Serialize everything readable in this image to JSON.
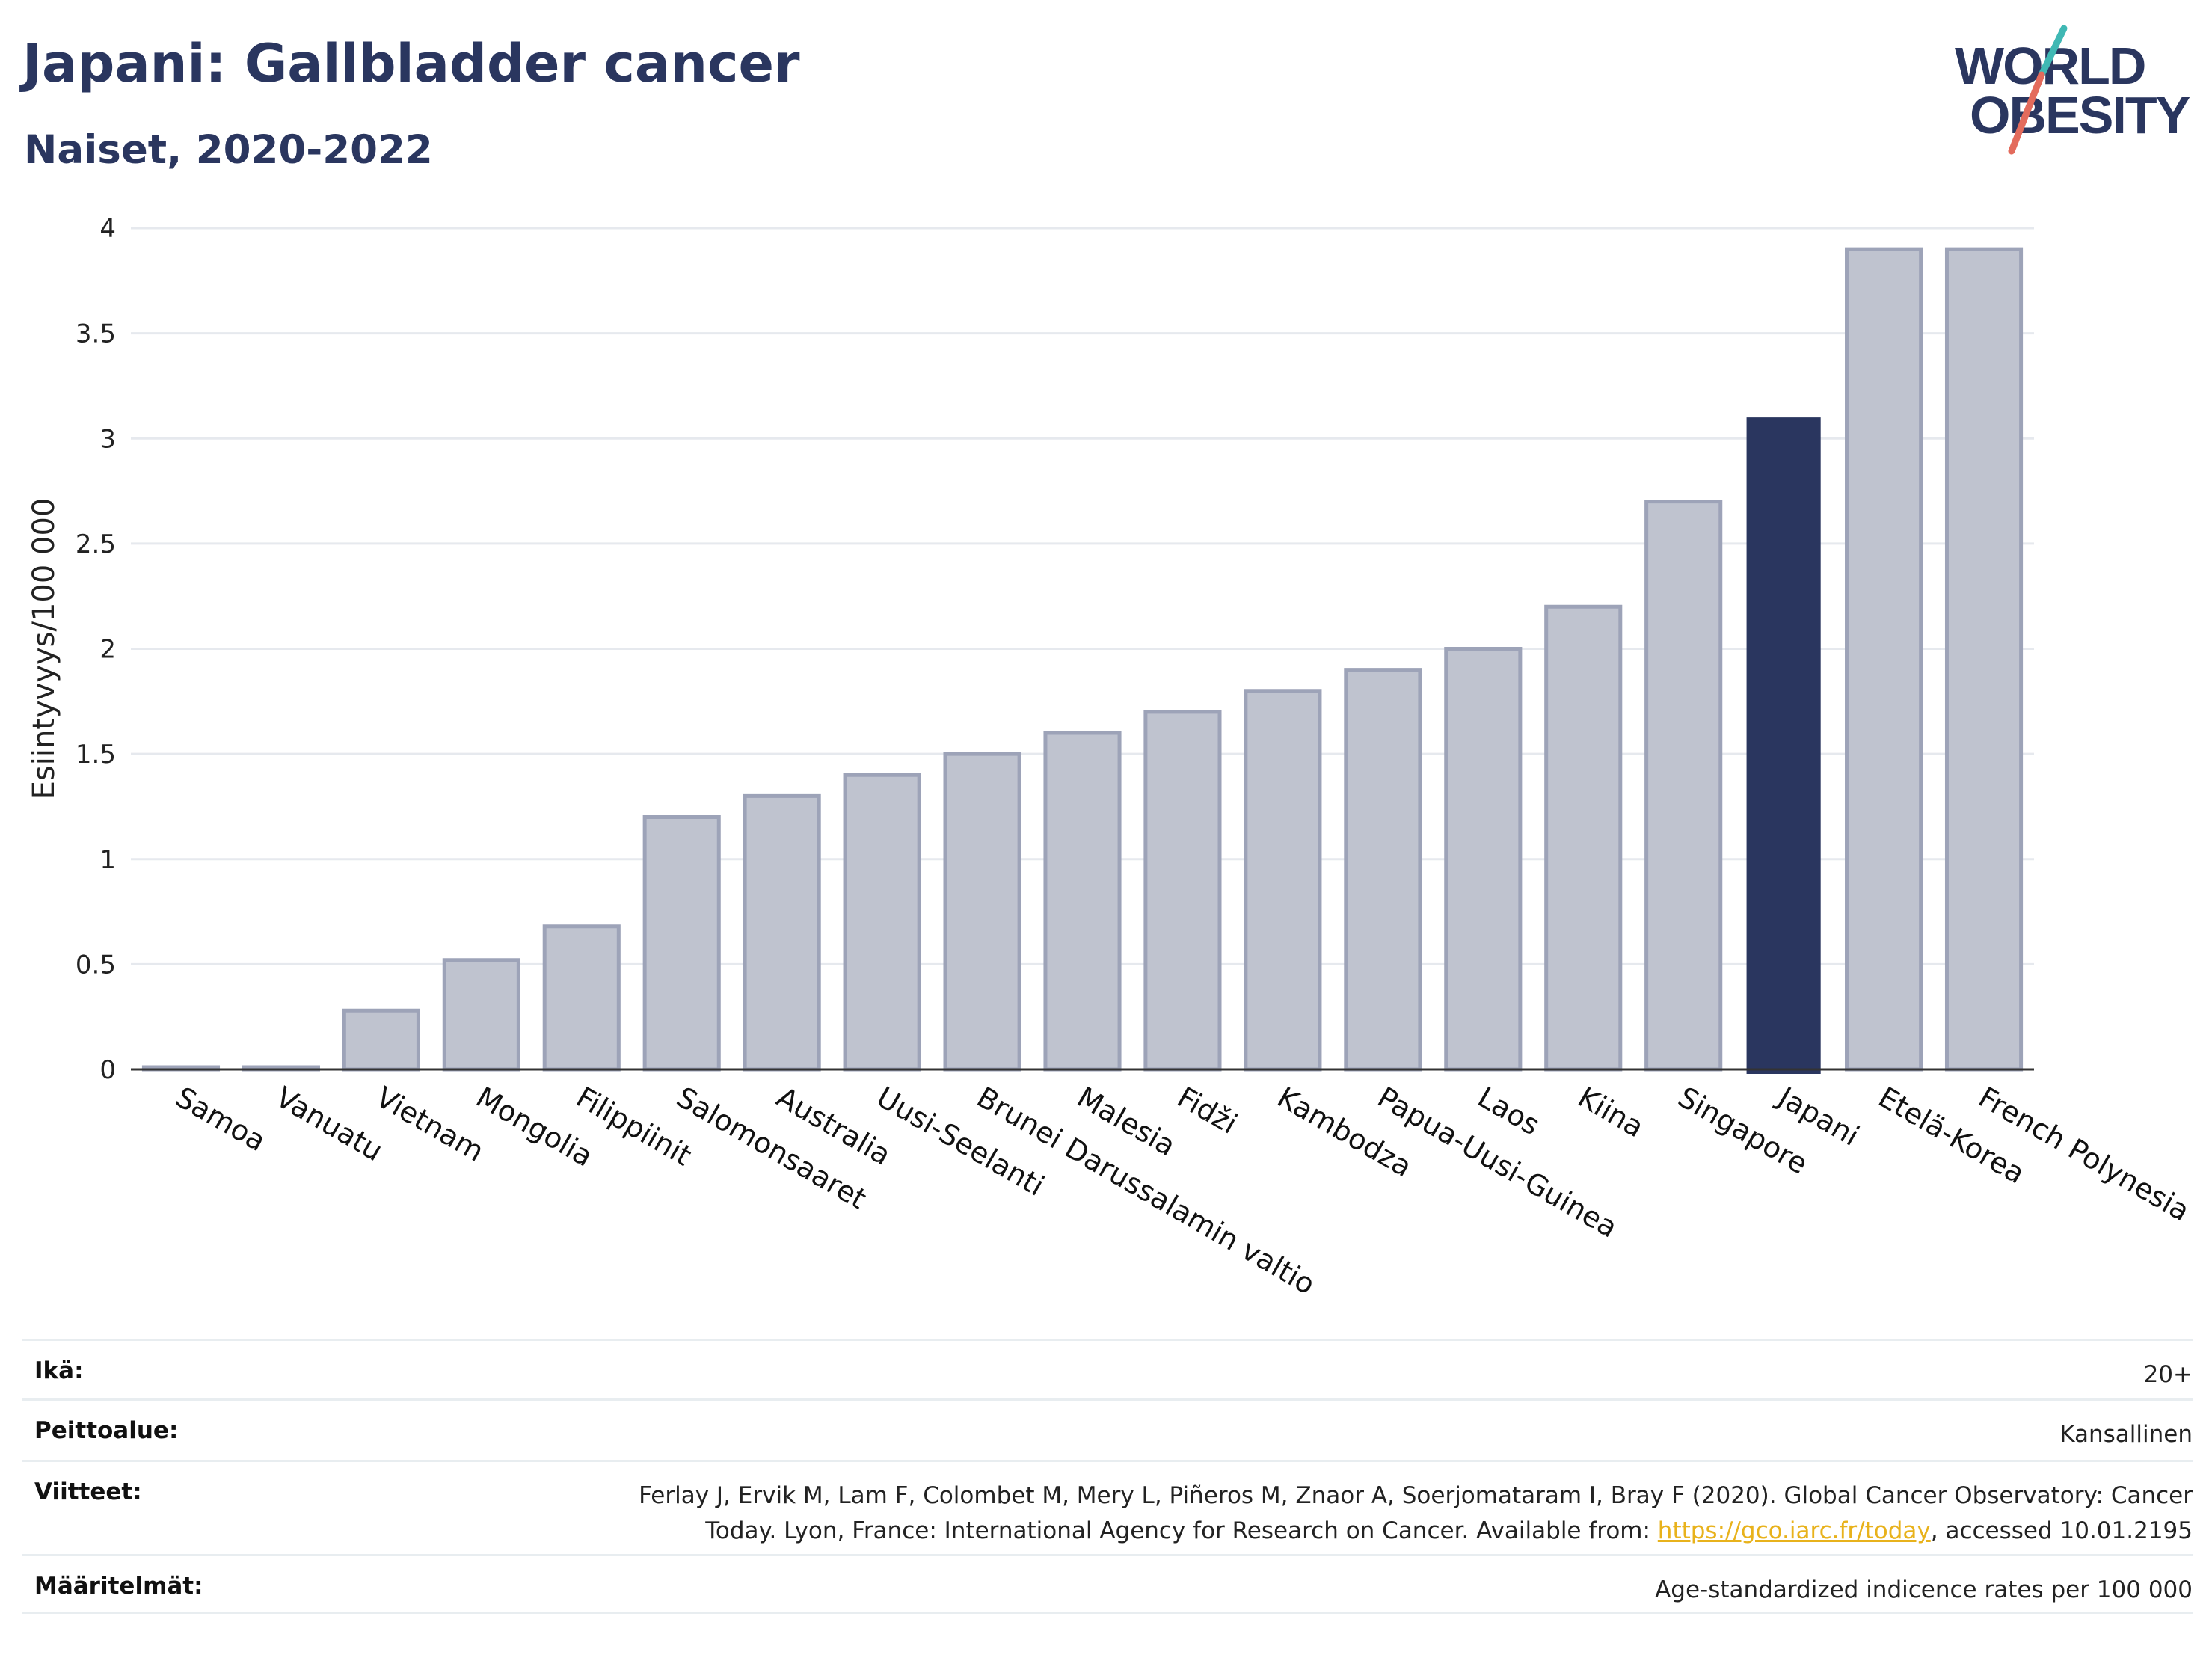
{
  "header": {
    "title": "Japani: Gallbladder cancer",
    "subtitle": "Naiset, 2020-2022"
  },
  "logo": {
    "line1": "WORLD",
    "line2": "OBESITY",
    "text_color": "#2a365f",
    "slash_colors": [
      "#3fb8b4",
      "#e36b5c"
    ]
  },
  "chart_data": {
    "type": "bar",
    "title": "Japani: Gallbladder cancer",
    "subtitle": "Naiset, 2020-2022",
    "xlabel": "",
    "ylabel": "Esiintyvyys/100 000",
    "ylim": [
      0,
      4
    ],
    "yticks": [
      0,
      0.5,
      1,
      1.5,
      2,
      2.5,
      3,
      3.5,
      4
    ],
    "ytick_labels": [
      "0",
      "0.5",
      "1",
      "1.5",
      "2",
      "2.5",
      "3",
      "3.5",
      "4"
    ],
    "grid": true,
    "highlight": "Japani",
    "colors": {
      "default": "#bfc3cf",
      "default_edge": "#9da3b8",
      "highlight": "#2a365f"
    },
    "categories": [
      "Samoa",
      "Vanuatu",
      "Vietnam",
      "Mongolia",
      "Filippiinit",
      "Salomonsaaret",
      "Australia",
      "Uusi-Seelanti",
      "Brunei Darussalamin valtio",
      "Malesia",
      "Fidži",
      "Kambodza",
      "Papua-Uusi-Guinea",
      "Laos",
      "Kiina",
      "Singapore",
      "Japani",
      "Etelä-Korea",
      "French Polynesia"
    ],
    "values": [
      0.01,
      0.01,
      0.28,
      0.52,
      0.68,
      1.2,
      1.3,
      1.4,
      1.5,
      1.6,
      1.7,
      1.8,
      1.9,
      2.0,
      2.2,
      2.7,
      3.1,
      3.9,
      3.9
    ]
  },
  "meta": {
    "age_label": "Ikä:",
    "age_value": "20+",
    "coverage_label": "Peittoalue:",
    "coverage_value": "Kansallinen",
    "refs_label": "Viitteet:",
    "refs_line1": "Ferlay J, Ervik M, Lam F, Colombet M, Mery L, Piñeros M, Znaor A, Soerjomataram I, Bray F (2020). Global Cancer Observatory: Cancer",
    "refs_line2_pre": "Today. Lyon, France: International Agency for Research on Cancer. Available from: ",
    "refs_link": "https://gco.iarc.fr/today",
    "refs_line2_post": ", accessed 10.01.2195",
    "defs_label": "Määritelmät:",
    "defs_value": "Age-standardized indicence rates per 100 000"
  }
}
